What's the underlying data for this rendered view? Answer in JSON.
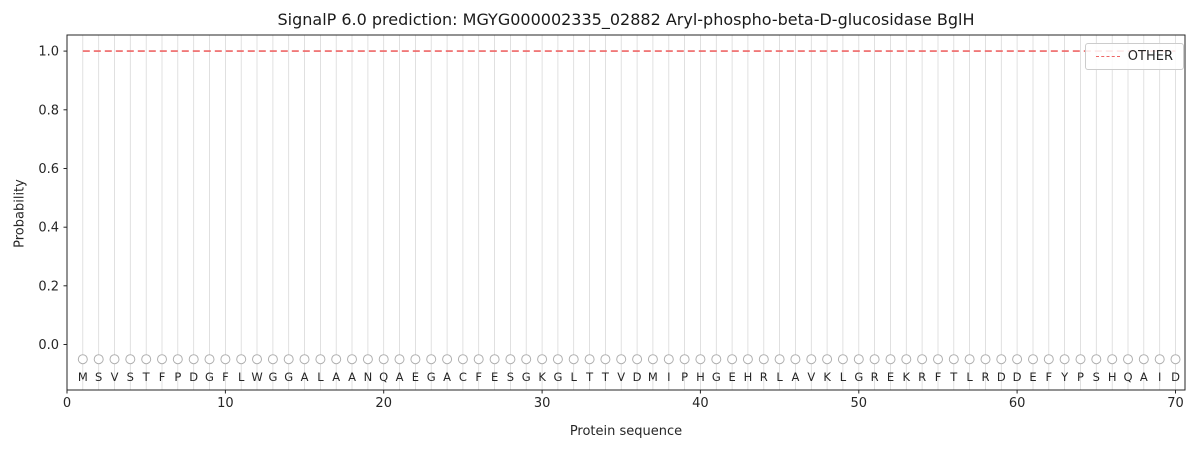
{
  "chart_data": {
    "type": "line",
    "title": "SignalP 6.0 prediction: MGYG000002335_02882 Aryl-phospho-beta-D-glucosidase BglH",
    "xlabel": "Protein sequence",
    "ylabel": "Probability",
    "xlim": [
      0,
      70.6
    ],
    "ylim": [
      -0.155,
      1.055
    ],
    "xticks": [
      0,
      10,
      20,
      30,
      40,
      50,
      60,
      70
    ],
    "yticks": [
      0.0,
      0.2,
      0.4,
      0.6,
      0.8,
      1.0
    ],
    "grid": {
      "vertical_per_residue": true,
      "color": "#d9d9d9"
    },
    "sequence": "MSVSTFPDGFLWGGALAANQAEGACFESGKGLTTVDMIPHGEHRLAVKLGREKRFTLRDDEFYPSHQAID",
    "series": [
      {
        "name": "OTHER",
        "color": "#ee6666",
        "style": "dashed",
        "dash": [
          7,
          4
        ],
        "x_range": [
          1,
          70
        ],
        "y_value": 1.0
      }
    ],
    "marker": {
      "y": -0.05,
      "color": "#b0b0b0",
      "shape": "open-circle"
    },
    "legend": {
      "position": "upper right",
      "entries": [
        {
          "label": "OTHER",
          "color": "#ee6666",
          "style": "dashed"
        }
      ]
    }
  }
}
